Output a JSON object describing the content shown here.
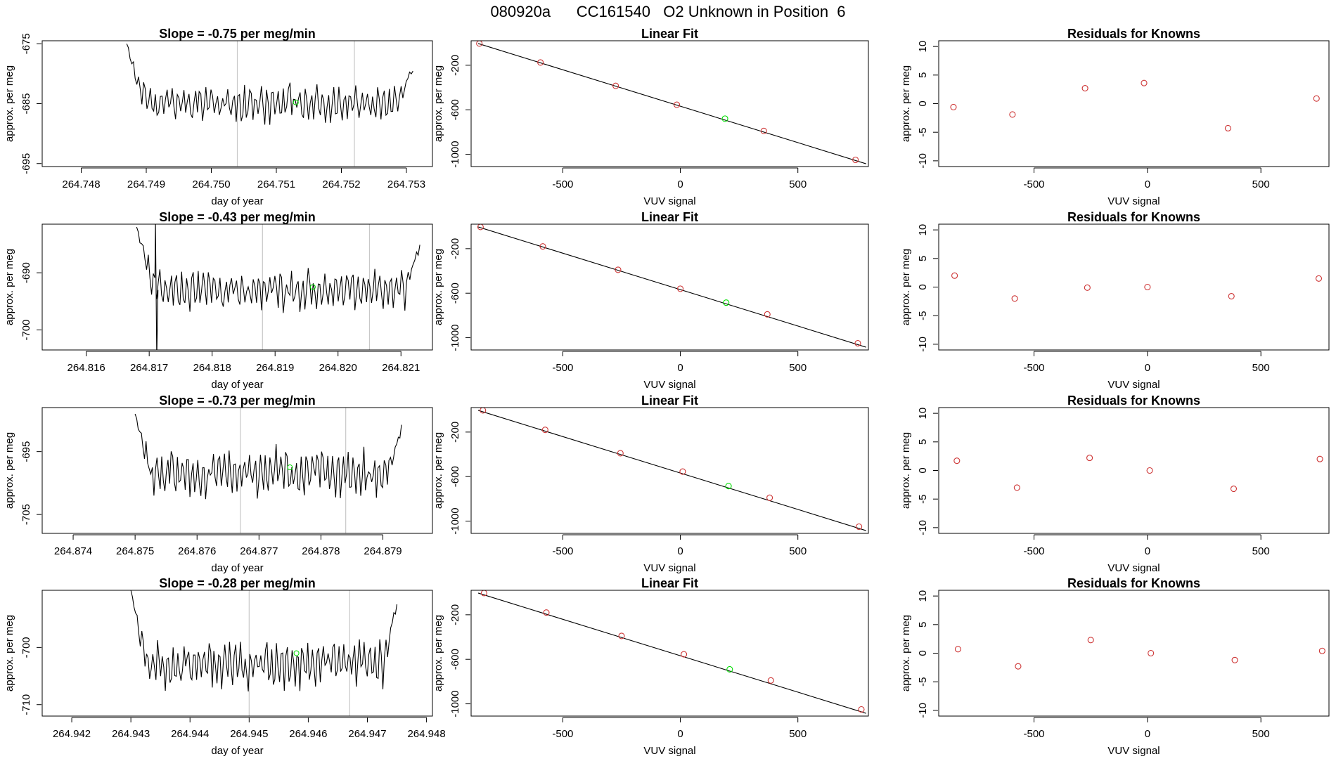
{
  "page_title": "080920a      CC161540   O2 Unknown in Position  6",
  "colors": {
    "axis": "#000000",
    "trace": "#000000",
    "known_point": "#cd3333",
    "unknown_point": "#00dd00",
    "vline": "#c8c8c8"
  },
  "chart_data": [
    {
      "type": "line",
      "title": "Slope =  -0.75  per meg/min",
      "xlabel": "day of year",
      "ylabel": "approx. per meg",
      "xlim": [
        264.7474,
        264.7534
      ],
      "ylim": [
        -695.5,
        -674.5
      ],
      "xticks": [
        "264.748",
        "264.749",
        "264.750",
        "264.751",
        "264.752",
        "264.753"
      ],
      "yticks": [
        "-675",
        "-685",
        "-695"
      ],
      "ytick_values": [
        -675,
        -685,
        -695
      ],
      "seed": 11,
      "start": 264.7487,
      "end": 264.7531,
      "base": -685,
      "amp": 3.2,
      "rise_left": -675,
      "rise_right": -675,
      "vlines": [
        264.7504,
        264.7522
      ],
      "green_point": [
        264.7513,
        -684.8
      ]
    },
    {
      "type": "scatter",
      "title": "Linear Fit",
      "xlabel": "VUV signal",
      "ylabel": "approx. per meg",
      "xlim": [
        -890,
        800
      ],
      "ylim": [
        -1110,
        20
      ],
      "xticks": [
        "-500",
        "0",
        "500"
      ],
      "xtick_values": [
        -500,
        0,
        500
      ],
      "yticks": [
        "-200",
        "-600",
        "-1000"
      ],
      "ytick_values": [
        -200,
        -600,
        -1000
      ],
      "line": [
        [
          -860,
          -5
        ],
        [
          790,
          -1085
        ]
      ],
      "known_points": [
        [
          -855,
          -5
        ],
        [
          -595,
          -175
        ],
        [
          -275,
          -385
        ],
        [
          -15,
          -555
        ],
        [
          355,
          -790
        ],
        [
          745,
          -1050
        ]
      ],
      "unknown_point": [
        190,
        -680
      ]
    },
    {
      "type": "scatter",
      "title": "Residuals for Knowns",
      "xlabel": "VUV signal",
      "ylabel": "approx. per meg",
      "xlim": [
        -920,
        800
      ],
      "ylim": [
        -11,
        11
      ],
      "xticks": [
        "-500",
        "0",
        "500"
      ],
      "xtick_values": [
        -500,
        0,
        500
      ],
      "yticks": [
        "10",
        "5",
        "0",
        "-5",
        "-10"
      ],
      "ytick_values": [
        10,
        5,
        0,
        -5,
        -10
      ],
      "points": [
        [
          -855,
          -0.6
        ],
        [
          -595,
          -1.9
        ],
        [
          -275,
          2.7
        ],
        [
          -15,
          3.6
        ],
        [
          355,
          -4.3
        ],
        [
          745,
          0.9
        ]
      ]
    },
    {
      "type": "line",
      "title": "Slope =  -0.43  per meg/min",
      "xlabel": "day of year",
      "ylabel": "approx. per meg",
      "xlim": [
        264.8153,
        264.8215
      ],
      "ylim": [
        -703.5,
        -681.5
      ],
      "xticks": [
        "264.816",
        "264.817",
        "264.818",
        "264.819",
        "264.820",
        "264.821"
      ],
      "yticks": [
        "-690",
        "-700"
      ],
      "ytick_values": [
        -690,
        -700
      ],
      "seed": 23,
      "start": 264.8168,
      "end": 264.8213,
      "base": -693,
      "amp": 3.5,
      "rise_left": -682,
      "rise_right": -682,
      "spike": [
        264.8171,
        -681,
        -705
      ],
      "vlines": [
        264.8188,
        264.8205
      ],
      "green_point": [
        264.8196,
        -692.5
      ]
    },
    {
      "type": "scatter",
      "title": "Linear Fit",
      "xlabel": "VUV signal",
      "ylabel": "approx. per meg",
      "xlim": [
        -890,
        800
      ],
      "ylim": [
        -1110,
        20
      ],
      "xticks": [
        "-500",
        "0",
        "500"
      ],
      "xtick_values": [
        -500,
        0,
        500
      ],
      "yticks": [
        "-200",
        "-600",
        "-1000"
      ],
      "ytick_values": [
        -200,
        -600,
        -1000
      ],
      "line": [
        [
          -860,
          -5
        ],
        [
          790,
          -1085
        ]
      ],
      "known_points": [
        [
          -850,
          -5
        ],
        [
          -585,
          -180
        ],
        [
          -265,
          -390
        ],
        [
          0,
          -560
        ],
        [
          370,
          -790
        ],
        [
          755,
          -1050
        ]
      ],
      "unknown_point": [
        195,
        -685
      ]
    },
    {
      "type": "scatter",
      "title": "Residuals for Knowns",
      "xlabel": "VUV signal",
      "ylabel": "approx. per meg",
      "xlim": [
        -920,
        800
      ],
      "ylim": [
        -11,
        11
      ],
      "xticks": [
        "-500",
        "0",
        "500"
      ],
      "xtick_values": [
        -500,
        0,
        500
      ],
      "yticks": [
        "10",
        "5",
        "0",
        "-5",
        "-10"
      ],
      "ytick_values": [
        10,
        5,
        0,
        -5,
        -10
      ],
      "points": [
        [
          -850,
          2.0
        ],
        [
          -585,
          -2.0
        ],
        [
          -265,
          -0.1
        ],
        [
          0,
          0.0
        ],
        [
          370,
          -1.6
        ],
        [
          755,
          1.5
        ]
      ]
    },
    {
      "type": "line",
      "title": "Slope =  -0.73  per meg/min",
      "xlabel": "day of year",
      "ylabel": "approx. per meg",
      "xlim": [
        264.8735,
        264.8798
      ],
      "ylim": [
        -708,
        -688
      ],
      "xticks": [
        "264.874",
        "264.875",
        "264.876",
        "264.877",
        "264.878",
        "264.879"
      ],
      "yticks": [
        "-695",
        "-705"
      ],
      "ytick_values": [
        -695,
        -705
      ],
      "seed": 37,
      "start": 264.875,
      "end": 264.8793,
      "base": -698.5,
      "amp": 3.8,
      "rise_left": -689,
      "rise_right": -688,
      "vlines": [
        264.8767,
        264.8784
      ],
      "green_point": [
        264.8775,
        -697.5
      ]
    },
    {
      "type": "scatter",
      "title": "Linear Fit",
      "xlabel": "VUV signal",
      "ylabel": "approx. per meg",
      "xlim": [
        -890,
        800
      ],
      "ylim": [
        -1110,
        20
      ],
      "xticks": [
        "-500",
        "0",
        "500"
      ],
      "xtick_values": [
        -500,
        0,
        500
      ],
      "yticks": [
        "-200",
        "-600",
        "-1000"
      ],
      "ytick_values": [
        -200,
        -600,
        -1000
      ],
      "line": [
        [
          -860,
          -5
        ],
        [
          790,
          -1085
        ]
      ],
      "known_points": [
        [
          -840,
          -5
        ],
        [
          -575,
          -180
        ],
        [
          -255,
          -390
        ],
        [
          10,
          -555
        ],
        [
          380,
          -790
        ],
        [
          760,
          -1050
        ]
      ],
      "unknown_point": [
        205,
        -685
      ]
    },
    {
      "type": "scatter",
      "title": "Residuals for Knowns",
      "xlabel": "VUV signal",
      "ylabel": "approx. per meg",
      "xlim": [
        -920,
        800
      ],
      "ylim": [
        -11,
        11
      ],
      "xticks": [
        "-500",
        "0",
        "500"
      ],
      "xtick_values": [
        -500,
        0,
        500
      ],
      "yticks": [
        "10",
        "5",
        "0",
        "-5",
        "-10"
      ],
      "ytick_values": [
        10,
        5,
        0,
        -5,
        -10
      ],
      "points": [
        [
          -840,
          1.7
        ],
        [
          -575,
          -3.0
        ],
        [
          -255,
          2.2
        ],
        [
          10,
          0.0
        ],
        [
          380,
          -3.2
        ],
        [
          760,
          2.0
        ]
      ]
    },
    {
      "type": "line",
      "title": "Slope =  -0.28  per meg/min",
      "xlabel": "day of year",
      "ylabel": "approx. per meg",
      "xlim": [
        264.9415,
        264.9481
      ],
      "ylim": [
        -712,
        -690
      ],
      "xticks": [
        "264.942",
        "264.943",
        "264.944",
        "264.945",
        "264.946",
        "264.947",
        "264.948"
      ],
      "yticks": [
        "-700",
        "-710"
      ],
      "ytick_values": [
        -700,
        -710
      ],
      "seed": 53,
      "start": 264.943,
      "end": 264.9475,
      "base": -703,
      "amp": 4.2,
      "rise_left": -690,
      "rise_right": -690,
      "vlines": [
        264.945,
        264.9467
      ],
      "green_point": [
        264.9458,
        -701
      ]
    },
    {
      "type": "scatter",
      "title": "Linear Fit",
      "xlabel": "VUV signal",
      "ylabel": "approx. per meg",
      "xlim": [
        -890,
        800
      ],
      "ylim": [
        -1110,
        20
      ],
      "xticks": [
        "-500",
        "0",
        "500"
      ],
      "xtick_values": [
        -500,
        0,
        500
      ],
      "yticks": [
        "-200",
        "-600",
        "-1000"
      ],
      "ytick_values": [
        -200,
        -600,
        -1000
      ],
      "line": [
        [
          -860,
          -5
        ],
        [
          790,
          -1085
        ]
      ],
      "known_points": [
        [
          -835,
          -5
        ],
        [
          -570,
          -180
        ],
        [
          -250,
          -390
        ],
        [
          15,
          -555
        ],
        [
          385,
          -790
        ],
        [
          770,
          -1050
        ]
      ],
      "unknown_point": [
        210,
        -690
      ]
    },
    {
      "type": "scatter",
      "title": "Residuals for Knowns",
      "xlabel": "VUV signal",
      "ylabel": "approx. per meg",
      "xlim": [
        -920,
        800
      ],
      "ylim": [
        -11,
        11
      ],
      "xticks": [
        "-500",
        "0",
        "500"
      ],
      "xtick_values": [
        -500,
        0,
        500
      ],
      "yticks": [
        "10",
        "5",
        "0",
        "-5",
        "-10"
      ],
      "ytick_values": [
        10,
        5,
        0,
        -5,
        -10
      ],
      "points": [
        [
          -835,
          0.7
        ],
        [
          -570,
          -2.3
        ],
        [
          -250,
          2.3
        ],
        [
          15,
          0.0
        ],
        [
          385,
          -1.2
        ],
        [
          770,
          0.4
        ]
      ]
    }
  ]
}
